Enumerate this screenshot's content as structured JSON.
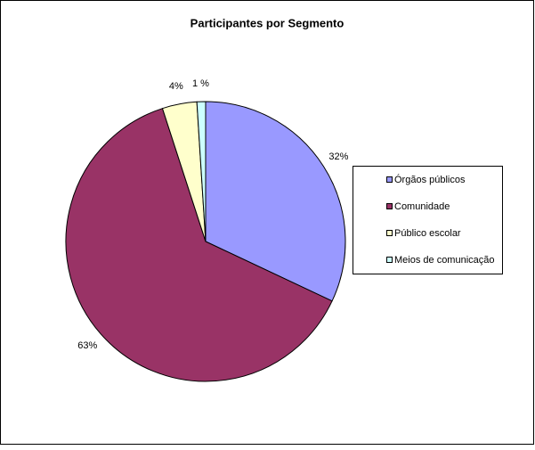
{
  "chart_data": {
    "type": "pie",
    "title": "Participantes por Segmento",
    "categories": [
      "Órgãos públicos",
      "Comunidade",
      "Público escolar",
      "Meios de comunicação"
    ],
    "values": [
      32,
      63,
      4,
      1
    ],
    "value_labels": [
      "32%",
      "63%",
      "4%",
      "1 %"
    ],
    "colors": [
      "#9999ff",
      "#993366",
      "#ffffcc",
      "#ccffff"
    ],
    "legend": "right"
  }
}
